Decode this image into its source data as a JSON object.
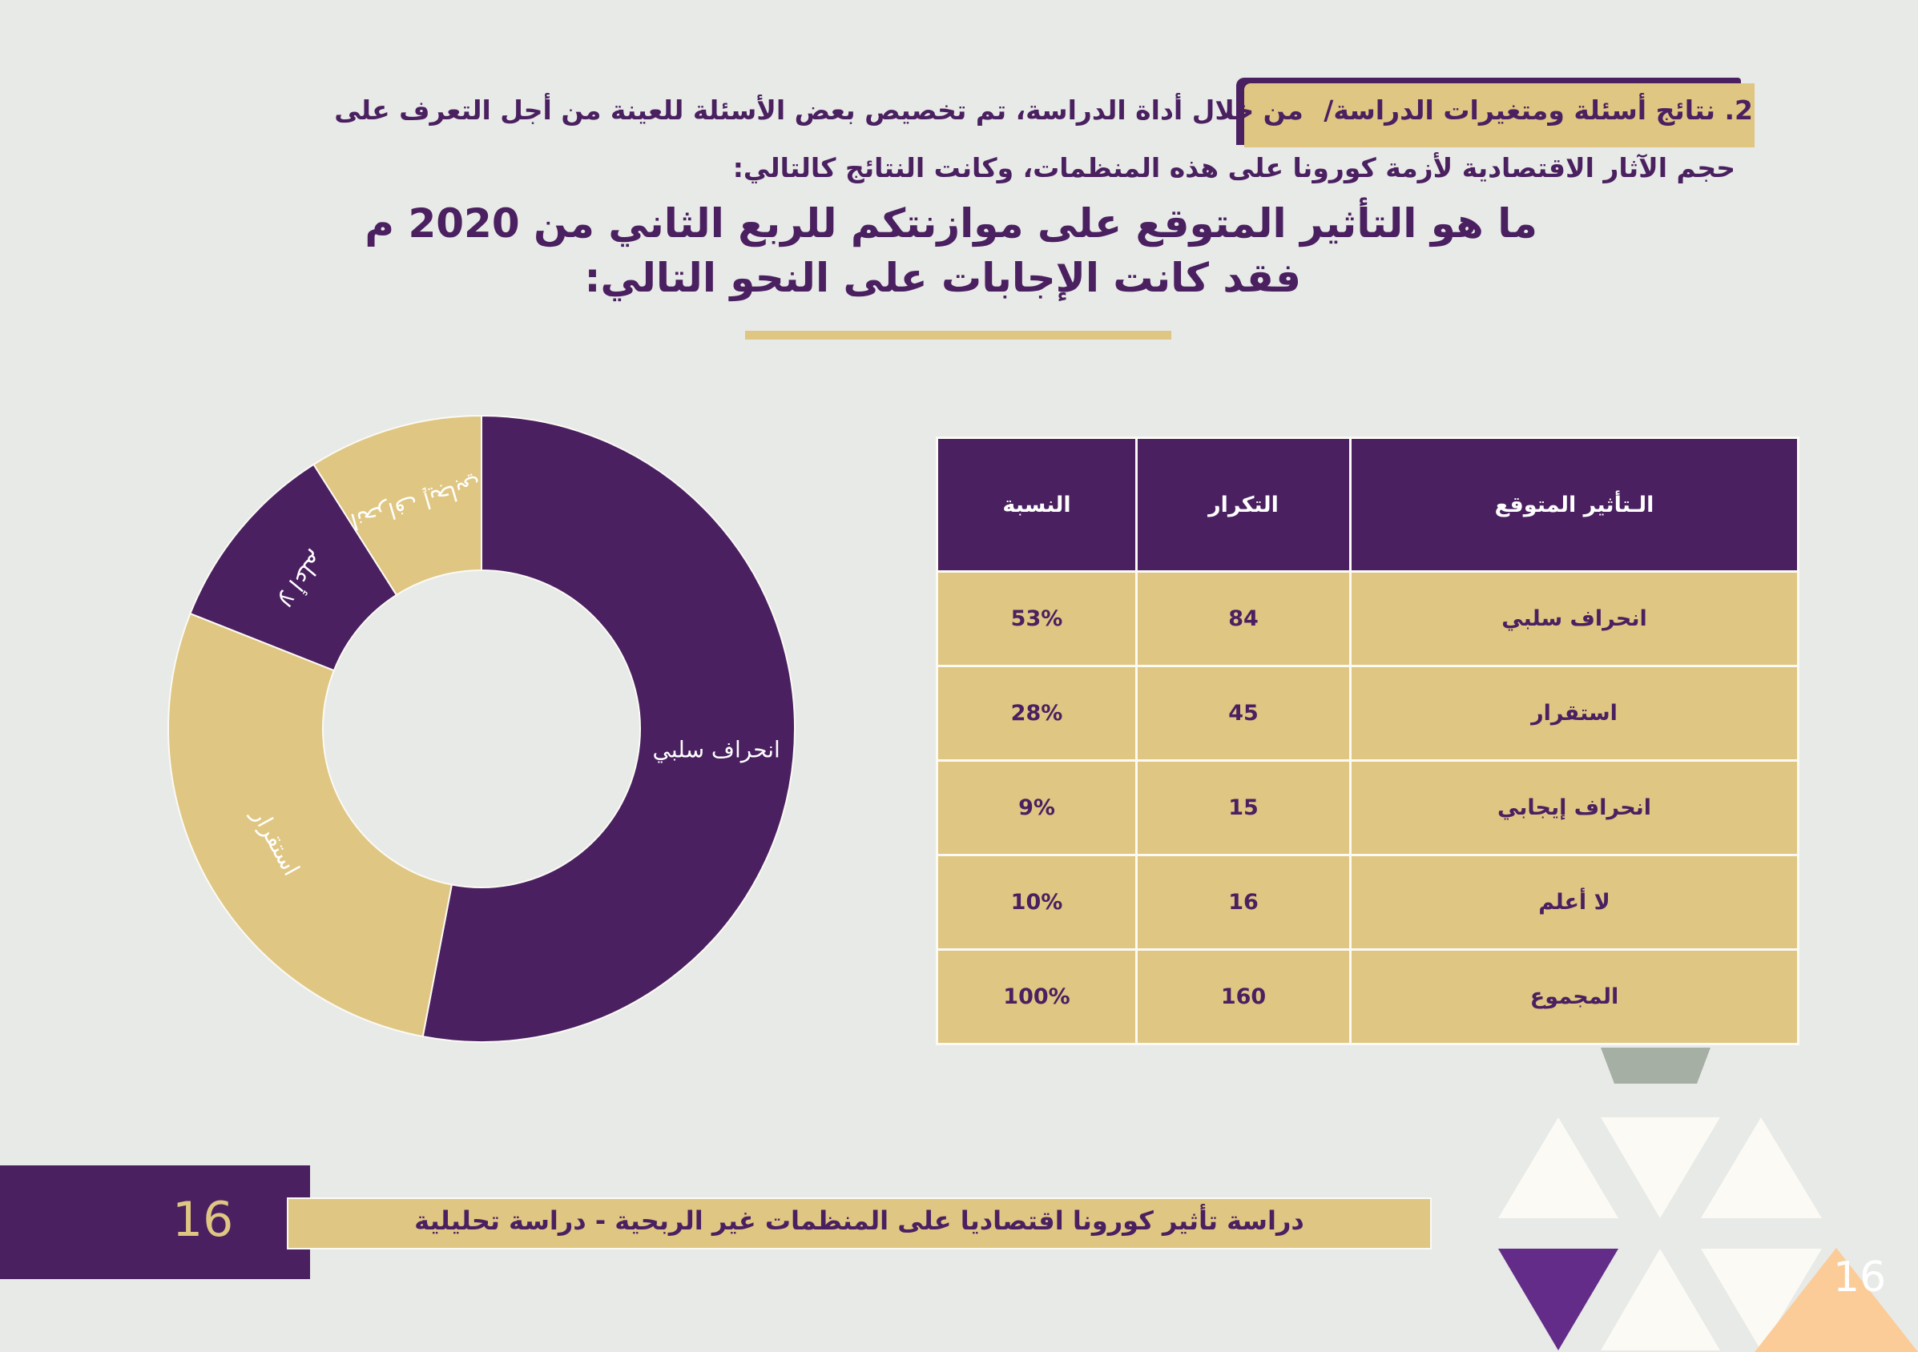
{
  "intro": {
    "section_label": "2. نتائج أسئلة ومتغيرات الدراسة/",
    "line1_rest": "من خلال أداة الدراسة، تم تخصيص بعض الأسئلة للعينة من أجل التعرف على",
    "line2": "حجم الآثار الاقتصادية لأزمة كورونا على هذه المنظمات، وكانت النتائج كالتالي:"
  },
  "question": {
    "line1": "ما هو التأثير المتوقع على موازنتكم للربع الثاني من 2020 م",
    "line2": "فقد كانت الإجابات على النحو التالي:"
  },
  "colors": {
    "purple": "#4a2060",
    "gold": "#dfc682",
    "bg": "#e8eae7"
  },
  "chart_data": {
    "type": "pie",
    "donut": true,
    "labels": [
      "انحراف سلبي",
      "استقرار",
      "لا أعلم",
      "انحراف إيجابي"
    ],
    "values": [
      53,
      28,
      10,
      9
    ],
    "colors": [
      "#4a2060",
      "#dfc682",
      "#4a2060",
      "#dfc682"
    ],
    "start": "top",
    "direction": "clockwise"
  },
  "table": {
    "headers": [
      "الـتأثير المتوقع",
      "التكرار",
      "النسبة"
    ],
    "rows": [
      [
        "انحراف سلبي",
        "84",
        "53%"
      ],
      [
        "استقرار",
        "45",
        "28%"
      ],
      [
        "انحراف إيجابي",
        "15",
        "9%"
      ],
      [
        "لا أعلم",
        "16",
        "10%"
      ],
      [
        "المجموع",
        "160",
        "100%"
      ]
    ]
  },
  "footer": {
    "page_number": "16",
    "title": "دراسة تأثير كورونا اقتصاديا على المنظمات غير الربحية - دراسة تحليلية",
    "corner_number": "16"
  }
}
